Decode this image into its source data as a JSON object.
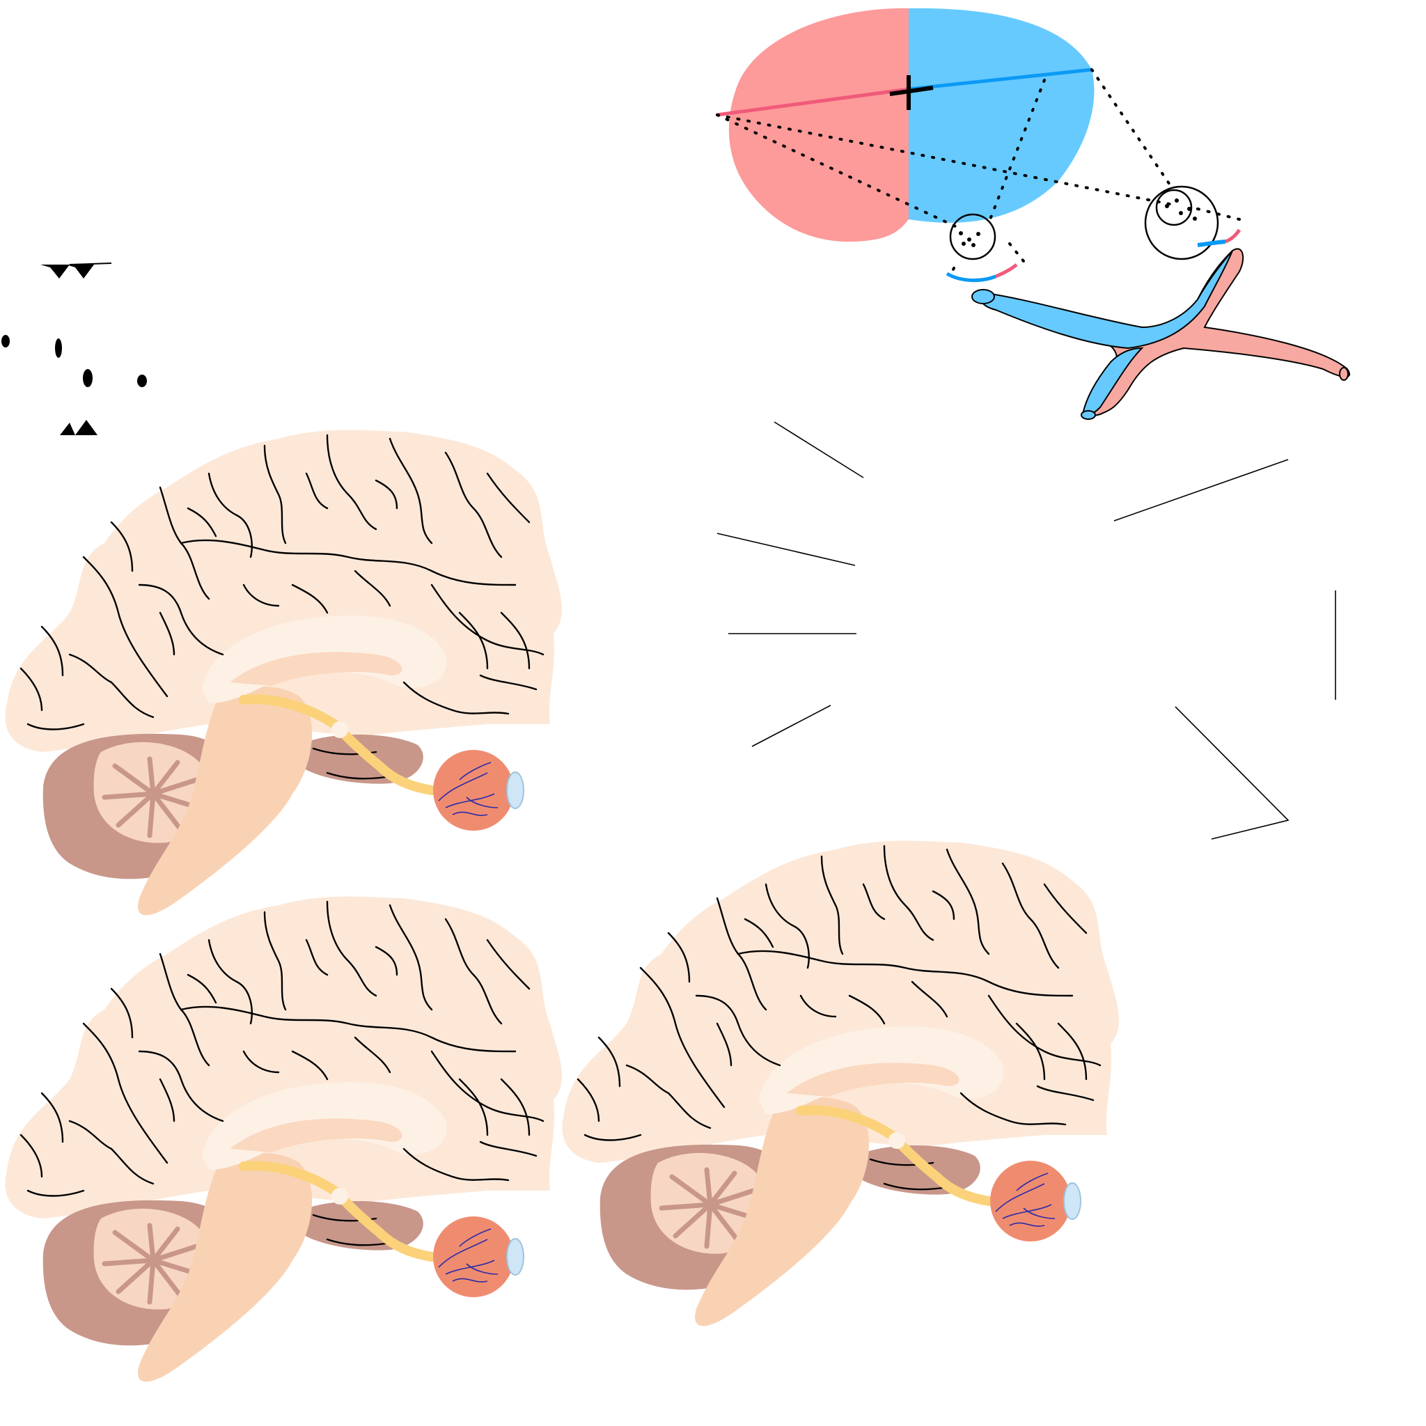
{
  "figure": {
    "text_labels": [],
    "leader_line_count": 7
  },
  "colors": {
    "left_field": "#fd9a9a",
    "right_field": "#66caff",
    "left_pathway": "#f05a7a",
    "right_pathway": "#0a9af5",
    "cortex_fill": "#fde8d8",
    "cortex_inner": "#fbd8c0",
    "corpus_callosum": "#fdf1e6",
    "cerebellum_fill": "#c8978a",
    "brainstem_fill": "#f9d2b4",
    "optic_nerve": "#fbd27a",
    "eyeball": "#ef8c70",
    "lens": "#cfe6f7",
    "vessels": "#2b2ba8",
    "outline": "#000000"
  },
  "brains": [
    {
      "id": "brain-top-left"
    },
    {
      "id": "brain-bottom-left"
    },
    {
      "id": "brain-bottom-right"
    }
  ]
}
